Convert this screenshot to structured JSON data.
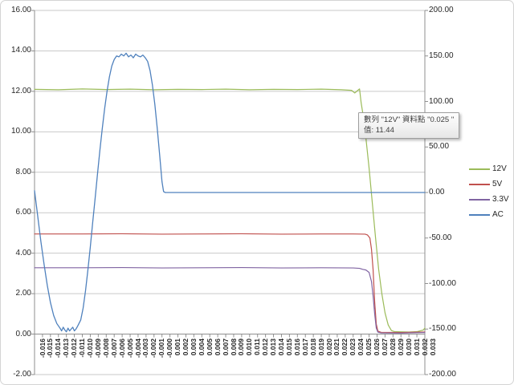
{
  "chart_data": {
    "type": "line",
    "title": "",
    "grid": "horizontal",
    "x_tick_labels": [
      "-0.016",
      "-0.015",
      "-0.014",
      "-0.013",
      "-0.012",
      "-0.011",
      "-0.010",
      "-0.009",
      "-0.008",
      "-0.007",
      "-0.006",
      "-0.005",
      "-0.004",
      "-0.003",
      "-0.002",
      "-0.001",
      "-0.000",
      "0.001",
      "0.002",
      "0.003",
      "0.004",
      "0.005",
      "0.006",
      "0.007",
      "0.008",
      "0.009",
      "0.010",
      "0.011",
      "0.012",
      "0.013",
      "0.014",
      "0.015",
      "0.016",
      "0.017",
      "0.018",
      "0.019",
      "0.020",
      "0.021",
      "0.022",
      "0.023",
      "0.024",
      "0.025",
      "0.026",
      "0.027",
      "0.028",
      "0.029",
      "0.030",
      "0.031",
      "0.032",
      "0.033"
    ],
    "axes": {
      "left": {
        "min": -2,
        "max": 16,
        "step": 2,
        "tick_values": [
          16,
          14,
          12,
          10,
          8,
          6,
          4,
          2,
          0,
          -2
        ],
        "tick_labels": [
          "16.00",
          "14.00",
          "12.00",
          "10.00",
          "8.00",
          "6.00",
          "4.00",
          "2.00",
          "0.00",
          "-2.00"
        ]
      },
      "right": {
        "min": -200,
        "max": 200,
        "step": 50,
        "tick_values": [
          200,
          150,
          100,
          50,
          0,
          -50,
          -100,
          -150,
          -200
        ],
        "tick_labels": [
          "200.00",
          "150.00",
          "100.00",
          "50.00",
          "0.00",
          "-50.00",
          "-100.00",
          "-150.00",
          "-200.00"
        ]
      }
    },
    "legend": {
      "position": "right",
      "entries": [
        "12V",
        "5V",
        "3.3V",
        "AC"
      ]
    },
    "series": [
      {
        "name": "12V",
        "axis": "left",
        "color": "#9BBB59",
        "width": 1.2,
        "points": [
          [
            -0.016,
            12.1
          ],
          [
            -0.013,
            12.08
          ],
          [
            -0.01,
            12.12
          ],
          [
            -0.007,
            12.09
          ],
          [
            -0.004,
            12.11
          ],
          [
            -0.001,
            12.08
          ],
          [
            0.002,
            12.1
          ],
          [
            0.005,
            12.09
          ],
          [
            0.008,
            12.11
          ],
          [
            0.011,
            12.08
          ],
          [
            0.014,
            12.1
          ],
          [
            0.017,
            12.09
          ],
          [
            0.02,
            12.11
          ],
          [
            0.0225,
            12.08
          ],
          [
            0.0238,
            12.05
          ],
          [
            0.0242,
            11.92
          ],
          [
            0.0245,
            12.02
          ],
          [
            0.0248,
            12.12
          ],
          [
            0.025,
            11.44
          ],
          [
            0.0253,
            10.7
          ],
          [
            0.0256,
            9.7
          ],
          [
            0.026,
            8.2
          ],
          [
            0.0264,
            6.5
          ],
          [
            0.0268,
            4.8
          ],
          [
            0.0272,
            3.2
          ],
          [
            0.0276,
            2.0
          ],
          [
            0.028,
            1.05
          ],
          [
            0.0284,
            0.45
          ],
          [
            0.0288,
            0.18
          ],
          [
            0.0292,
            0.12
          ],
          [
            0.031,
            0.1
          ],
          [
            0.032,
            0.12
          ],
          [
            0.0328,
            0.2
          ],
          [
            0.033,
            0.3
          ]
        ]
      },
      {
        "name": "5V",
        "axis": "left",
        "color": "#C0504D",
        "width": 1.2,
        "points": [
          [
            -0.016,
            4.95
          ],
          [
            -0.01,
            4.95
          ],
          [
            -0.005,
            4.96
          ],
          [
            0.0,
            4.94
          ],
          [
            0.005,
            4.95
          ],
          [
            0.01,
            4.96
          ],
          [
            0.015,
            4.94
          ],
          [
            0.02,
            4.95
          ],
          [
            0.024,
            4.95
          ],
          [
            0.0255,
            4.94
          ],
          [
            0.0258,
            4.9
          ],
          [
            0.0261,
            4.75
          ],
          [
            0.0263,
            4.2
          ],
          [
            0.0265,
            3.2
          ],
          [
            0.0267,
            1.6
          ],
          [
            0.0269,
            0.5
          ],
          [
            0.0271,
            0.15
          ],
          [
            0.0275,
            0.09
          ],
          [
            0.03,
            0.08
          ],
          [
            0.033,
            0.1
          ]
        ]
      },
      {
        "name": "3.3V",
        "axis": "left",
        "color": "#8064A2",
        "width": 1.2,
        "points": [
          [
            -0.016,
            3.28
          ],
          [
            -0.01,
            3.28
          ],
          [
            -0.005,
            3.29
          ],
          [
            0.0,
            3.27
          ],
          [
            0.005,
            3.28
          ],
          [
            0.01,
            3.29
          ],
          [
            0.015,
            3.27
          ],
          [
            0.02,
            3.28
          ],
          [
            0.024,
            3.27
          ],
          [
            0.0248,
            3.25
          ],
          [
            0.0252,
            3.2
          ],
          [
            0.0256,
            3.17
          ],
          [
            0.026,
            3.05
          ],
          [
            0.0263,
            2.6
          ],
          [
            0.0265,
            1.9
          ],
          [
            0.0267,
            1.0
          ],
          [
            0.0269,
            0.3
          ],
          [
            0.0271,
            0.1
          ],
          [
            0.0275,
            0.06
          ],
          [
            0.03,
            0.05
          ],
          [
            0.033,
            0.08
          ]
        ]
      },
      {
        "name": "AC",
        "axis": "right",
        "color": "#4F81BD",
        "width": 1.3,
        "points": [
          [
            -0.016,
            2
          ],
          [
            -0.0156,
            -26
          ],
          [
            -0.0152,
            -54
          ],
          [
            -0.0148,
            -79
          ],
          [
            -0.0144,
            -102
          ],
          [
            -0.014,
            -121
          ],
          [
            -0.0136,
            -135
          ],
          [
            -0.0132,
            -144
          ],
          [
            -0.0128,
            -149
          ],
          [
            -0.0126,
            -152
          ],
          [
            -0.0124,
            -148
          ],
          [
            -0.0122,
            -151
          ],
          [
            -0.012,
            -153
          ],
          [
            -0.0118,
            -149
          ],
          [
            -0.0116,
            -152
          ],
          [
            -0.0114,
            -150
          ],
          [
            -0.0112,
            -148
          ],
          [
            -0.011,
            -152
          ],
          [
            -0.0108,
            -150
          ],
          [
            -0.0106,
            -147
          ],
          [
            -0.0102,
            -140
          ],
          [
            -0.0099,
            -127
          ],
          [
            -0.0096,
            -108
          ],
          [
            -0.0093,
            -85
          ],
          [
            -0.009,
            -60
          ],
          [
            -0.0087,
            -33
          ],
          [
            -0.0084,
            -7
          ],
          [
            -0.0081,
            20
          ],
          [
            -0.0078,
            46
          ],
          [
            -0.0075,
            70
          ],
          [
            -0.0072,
            92
          ],
          [
            -0.0069,
            111
          ],
          [
            -0.0066,
            127
          ],
          [
            -0.0063,
            139
          ],
          [
            -0.006,
            146
          ],
          [
            -0.0057,
            150
          ],
          [
            -0.0054,
            149
          ],
          [
            -0.0051,
            152
          ],
          [
            -0.0048,
            150
          ],
          [
            -0.0045,
            153
          ],
          [
            -0.0042,
            149
          ],
          [
            -0.0039,
            151
          ],
          [
            -0.0036,
            148
          ],
          [
            -0.0033,
            152
          ],
          [
            -0.003,
            150
          ],
          [
            -0.0027,
            149
          ],
          [
            -0.0024,
            151
          ],
          [
            -0.0021,
            148
          ],
          [
            -0.0018,
            144
          ],
          [
            -0.0015,
            134
          ],
          [
            -0.0012,
            118
          ],
          [
            -0.0009,
            97
          ],
          [
            -0.0006,
            71
          ],
          [
            -0.0003,
            42
          ],
          [
            0.0,
            12
          ],
          [
            0.0002,
            1
          ],
          [
            0.0004,
            0
          ],
          [
            0.002,
            0
          ],
          [
            0.005,
            0
          ],
          [
            0.01,
            0
          ],
          [
            0.015,
            0
          ],
          [
            0.02,
            0
          ],
          [
            0.025,
            0
          ],
          [
            0.03,
            0
          ],
          [
            0.033,
            0
          ]
        ]
      }
    ],
    "style": {
      "grid_color": "#C9C9C9",
      "axis_color": "#8F8F8F",
      "text_color": "#262626"
    }
  },
  "tooltip": {
    "line1": "數列 \"12V\" 資料點 \"0.025 \"",
    "line2": "值: 11.44"
  }
}
